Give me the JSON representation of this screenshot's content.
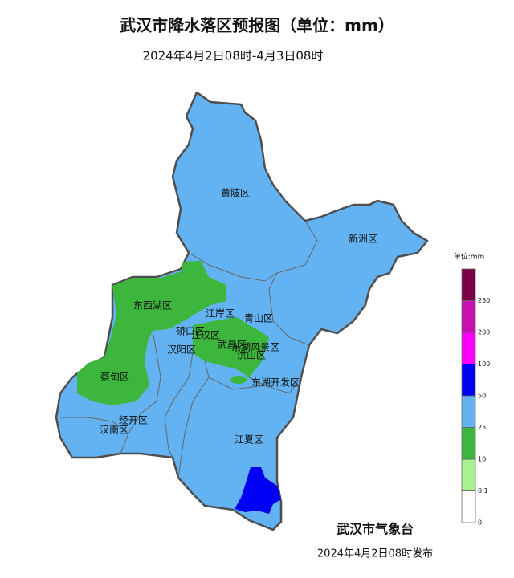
{
  "header": {
    "title": "武汉市降水落区预报图（单位：mm）",
    "subtitle": "2024年4月2日08时-4月3日08时"
  },
  "districts": [
    "黄陂区",
    "新洲区",
    "东西湖区",
    "江岸区",
    "青山区",
    "硚口区",
    "江汉区",
    "汉阳区",
    "武昌区",
    "洪山区",
    "东湖风景区",
    "蔡甸区",
    "东湖开发区",
    "经开区",
    "汉南区",
    "江夏区"
  ],
  "legend": {
    "unit": "单位:mm",
    "ticks": [
      0,
      0.1,
      10,
      25,
      50,
      100,
      200,
      250
    ],
    "colors": [
      "#ffffff",
      "#a6f28e",
      "#3db63d",
      "#63b3f2",
      "#0000f5",
      "#fa00fa",
      "#c810b0",
      "#780046"
    ]
  },
  "footer": {
    "issuer": "武汉市气象台",
    "issued": "2024年4月2日08时发布"
  }
}
